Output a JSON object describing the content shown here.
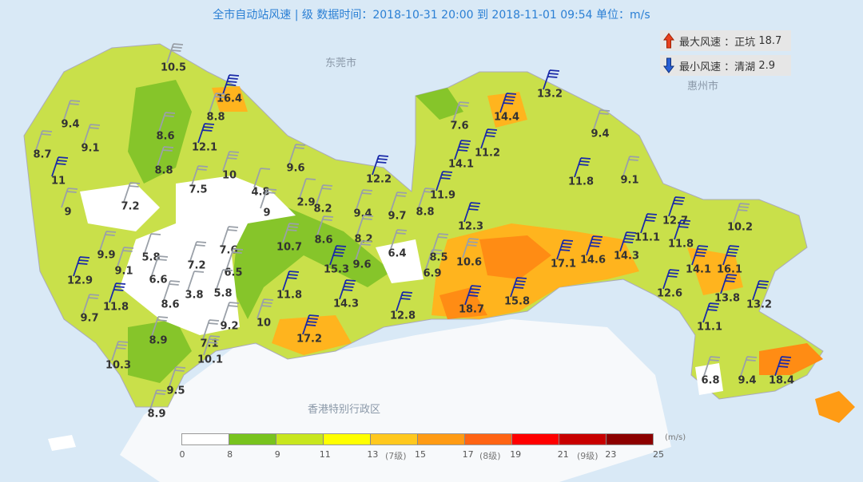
{
  "title": "全市自动站风速 | 级  数据时间：2018-10-31 20:00 到 2018-11-01 09:54  单位：m/s",
  "extremes": {
    "max": {
      "label": "最大风速",
      "station": "正坑",
      "value": "18.7",
      "icon": "arrow-up-icon",
      "color": "#e8401c"
    },
    "min": {
      "label": "最小风速",
      "station": "清湖",
      "value": "2.9",
      "icon": "arrow-down-icon",
      "color": "#2a5fd4"
    }
  },
  "places": [
    "东莞市",
    "惠州市",
    "香港特别行政区"
  ],
  "stations": [
    "10.5",
    "16.4",
    "8.8",
    "9.4",
    "9.1",
    "8.6",
    "12.1",
    "8.7",
    "11",
    "8.8",
    "10",
    "9.6",
    "7.5",
    "4.8",
    "2.9",
    "7.2",
    "9",
    "9",
    "8.2",
    "12.2",
    "9.4",
    "9.7",
    "8.8",
    "9.9",
    "5.8",
    "9.1",
    "12.9",
    "7.2",
    "6.6",
    "7.6",
    "6.5",
    "10.7",
    "8.6",
    "15.3",
    "8.2",
    "9.6",
    "6.4",
    "6.9",
    "8.5",
    "10.6",
    "12.3",
    "11.8",
    "9.7",
    "8.6",
    "3.8",
    "5.8",
    "11.8",
    "14.3",
    "9.2",
    "10",
    "17.2",
    "12.8",
    "18.7",
    "15.8",
    "17.1",
    "14.6",
    "14.3",
    "11.1",
    "12.7",
    "11.8",
    "10.2",
    "14.1",
    "16.1",
    "12.6",
    "13.8",
    "13.2",
    "11.1",
    "8.9",
    "7.1",
    "10.1",
    "10.3",
    "9.5",
    "8.9",
    "6.8",
    "9.4",
    "18.4",
    "13.2",
    "14.4",
    "7.6",
    "11.2",
    "14.1",
    "11.9",
    "9.4",
    "11.8",
    "9.1"
  ],
  "legend": {
    "unit": "(m/s)",
    "colors": [
      "#ffffff",
      "#78c31e",
      "#c8e61e",
      "#ffff00",
      "#ffc81e",
      "#ff9b14",
      "#ff6414",
      "#ff0000",
      "#c80000",
      "#8c0000"
    ],
    "ticks": [
      "0",
      "8",
      "9",
      "11",
      "13",
      "15",
      "17",
      "19",
      "21",
      "23",
      "25"
    ],
    "levels": [
      "(7级)",
      "(8级)",
      "(9级)"
    ]
  },
  "colors": {
    "sea": "#d9e9f6",
    "barb": "#1a2aa8",
    "title": "#2a7fd4"
  }
}
